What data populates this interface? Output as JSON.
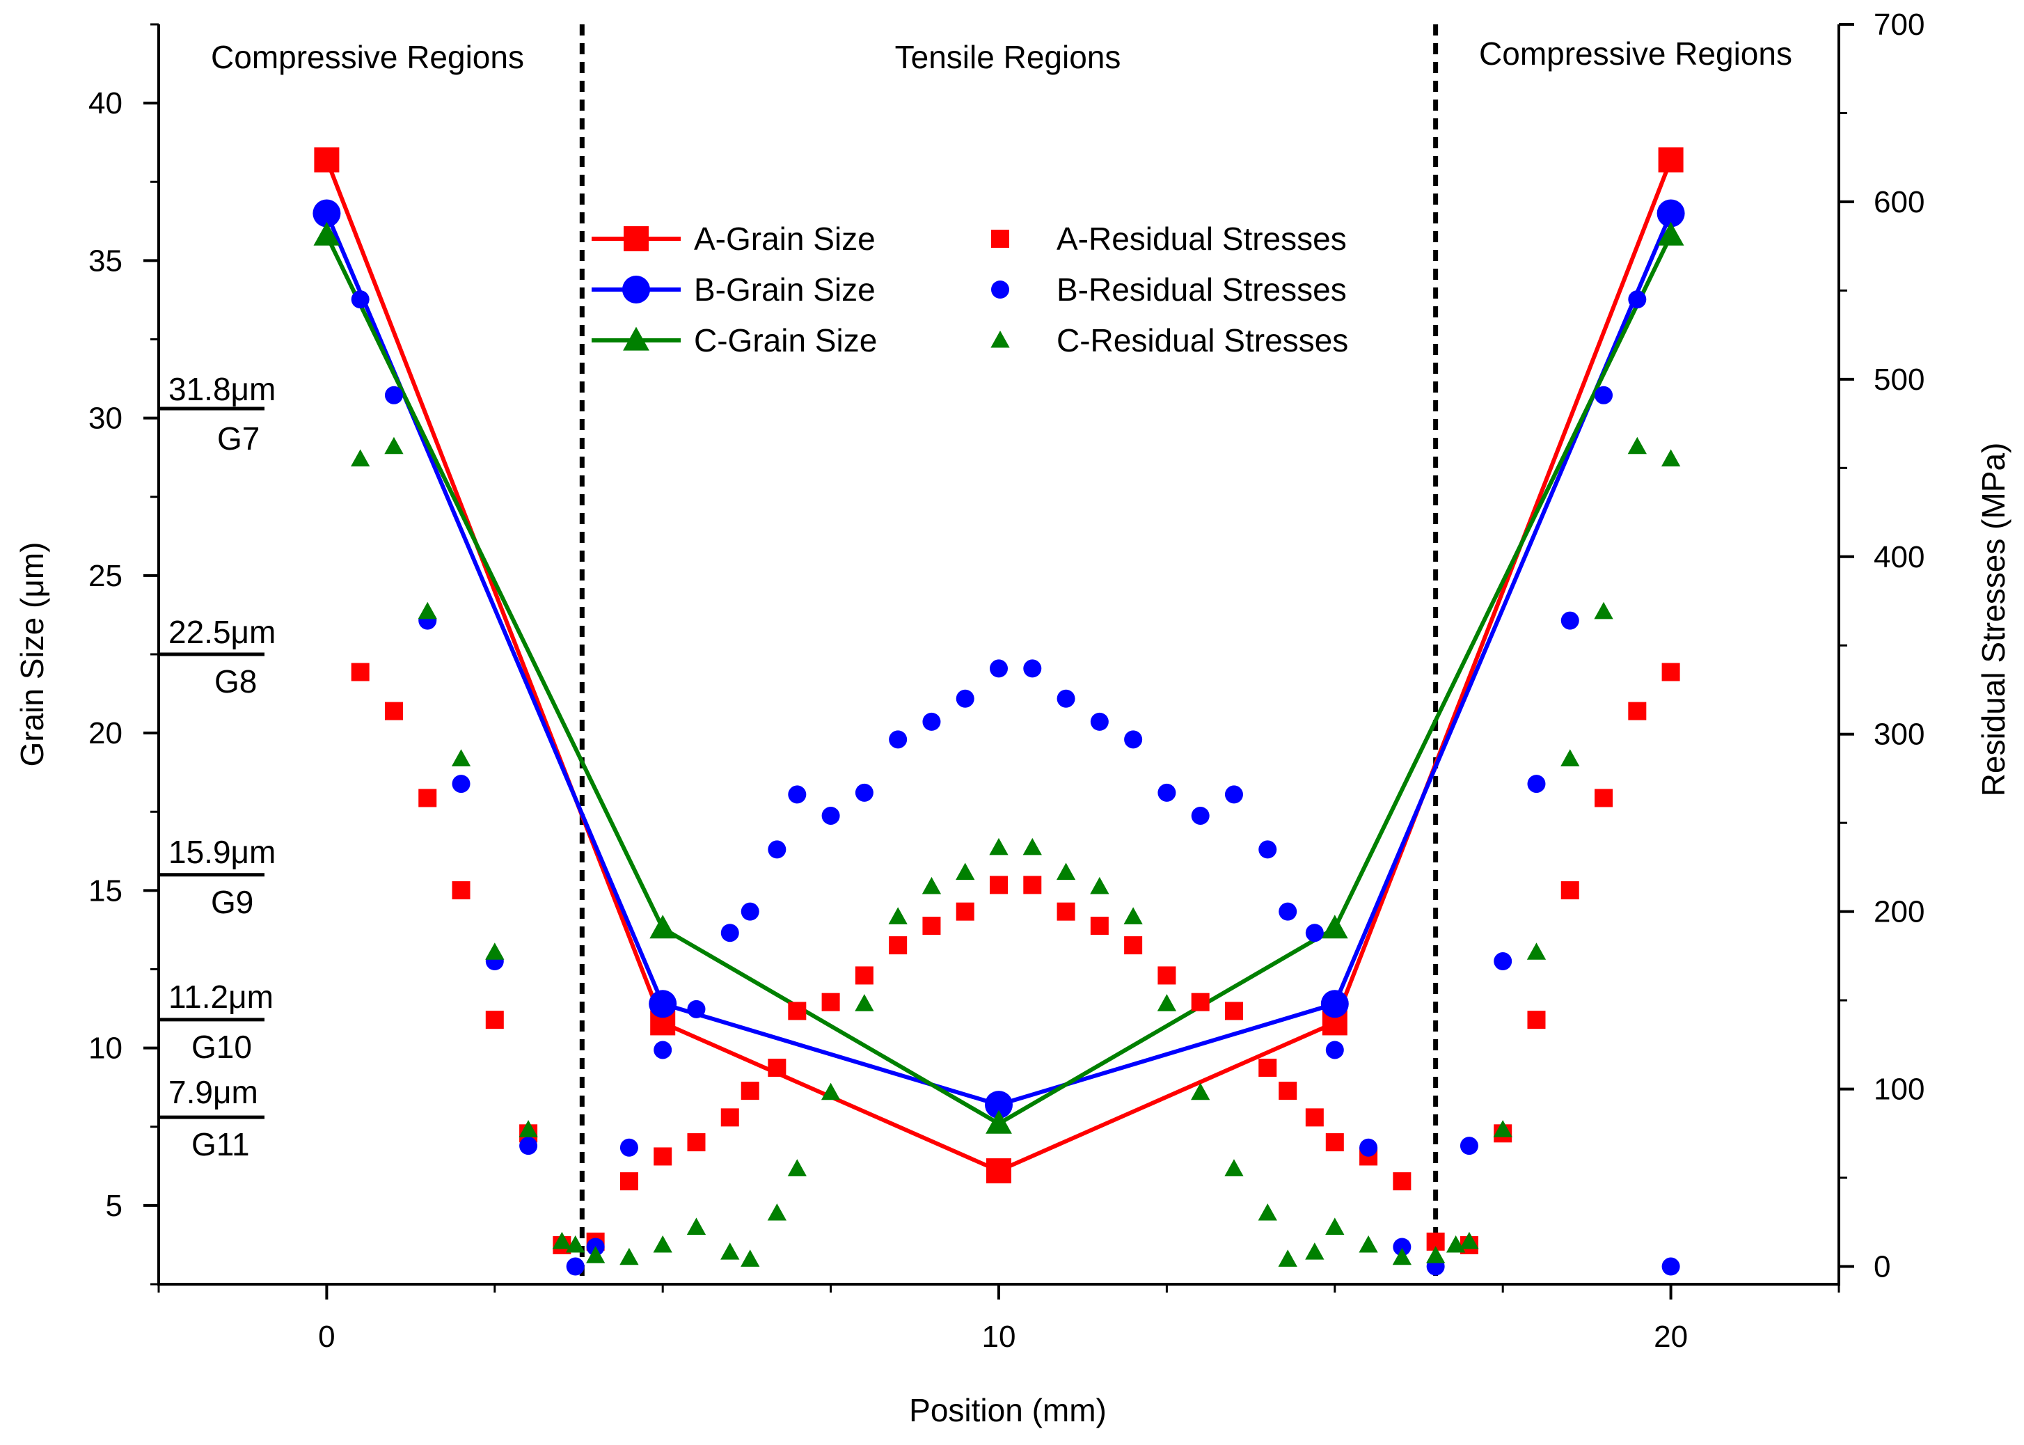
{
  "chart_data": {
    "type": "scatter",
    "xlabel": "Position (mm)",
    "ylabel": "Grain Size (μm)",
    "y2label": "Residual Stresses (MPa)",
    "xlim": [
      -2.5,
      22.5
    ],
    "ylim": [
      2.5,
      42.5
    ],
    "y2lim": [
      -10,
      700
    ],
    "xticks": [
      0,
      10,
      20
    ],
    "yticks": [
      5,
      10,
      15,
      20,
      25,
      30,
      35,
      40
    ],
    "y2ticks": [
      0,
      100,
      200,
      300,
      400,
      500,
      600,
      700
    ],
    "regions": [
      {
        "label": "Compressive Regions"
      },
      {
        "label": "Tensile Regions"
      },
      {
        "label": "Compressive Regions"
      }
    ],
    "region_boundaries_x": [
      3.8,
      16.5
    ],
    "grain_references": [
      {
        "size": "31.8μm",
        "grade": "G7",
        "value": 30.3
      },
      {
        "size": "22.5μm",
        "grade": "G8",
        "value": 22.5
      },
      {
        "size": "15.9μm",
        "grade": "G9",
        "value": 15.5
      },
      {
        "size": "11.2μm",
        "grade": "G10",
        "value": 10.9
      },
      {
        "size": "7.9μm",
        "grade": "G11",
        "value": 7.8
      }
    ],
    "legend": {
      "grain_a": "A-Grain Size",
      "grain_b": "B-Grain Size",
      "grain_c": "C-Grain Size",
      "stress_a": "A-Residual Stresses",
      "stress_b": "B-Residual Stresses",
      "stress_c": "C-Residual Stresses"
    },
    "colors": {
      "A": "#ff0000",
      "B": "#0000ff",
      "C": "#008000"
    },
    "grain_series": [
      {
        "name": "A-Grain Size",
        "key": "A",
        "marker": "square",
        "x": [
          0,
          5,
          10,
          15,
          20
        ],
        "y": [
          38.2,
          10.8,
          6.1,
          10.8,
          38.2
        ]
      },
      {
        "name": "B-Grain Size",
        "key": "B",
        "marker": "circle",
        "x": [
          0,
          5,
          10,
          15,
          20
        ],
        "y": [
          36.5,
          11.4,
          8.2,
          11.4,
          36.5
        ]
      },
      {
        "name": "C-Grain Size",
        "key": "C",
        "marker": "triangle",
        "x": [
          0,
          5,
          10,
          15,
          20
        ],
        "y": [
          35.8,
          13.8,
          7.6,
          13.8,
          35.8
        ]
      }
    ],
    "stress_series": [
      {
        "name": "A-Residual Stresses",
        "key": "A",
        "marker": "square",
        "x": [
          0.5,
          1.0,
          1.5,
          2.0,
          2.5,
          3.0,
          3.5,
          4.0,
          4.5,
          5.0,
          5.5,
          6.0,
          6.3,
          6.7,
          7.0,
          7.5,
          8.0,
          8.5,
          9.0,
          9.5,
          10.0,
          10.5,
          11.0,
          11.5,
          12.0,
          12.5,
          13.0,
          13.5,
          14.0,
          14.3,
          14.7,
          15.0,
          15.5,
          16.0,
          16.5,
          17.0,
          17.5,
          18.0,
          18.5,
          19.0,
          19.5,
          20.0
        ],
        "y": [
          335,
          313,
          264,
          212,
          139,
          75,
          12,
          14,
          48,
          62,
          70,
          84,
          99,
          112,
          144,
          149,
          164,
          181,
          192,
          200,
          215,
          215,
          200,
          192,
          181,
          164,
          149,
          144,
          112,
          99,
          84,
          70,
          62,
          48,
          14,
          12,
          75,
          139,
          212,
          264,
          313,
          335
        ]
      },
      {
        "name": "B-Residual Stresses",
        "key": "B",
        "marker": "circle",
        "x": [
          0.5,
          1.0,
          1.5,
          2.0,
          2.5,
          3.0,
          3.7,
          4.0,
          4.5,
          5.0,
          5.5,
          6.0,
          6.3,
          6.7,
          7.0,
          7.5,
          8.0,
          8.5,
          9.0,
          9.5,
          10.0,
          10.5,
          11.0,
          11.5,
          12.0,
          12.5,
          13.0,
          13.5,
          14.0,
          14.3,
          14.7,
          15.0,
          15.5,
          16.0,
          16.5,
          17.0,
          17.5,
          18.0,
          18.5,
          19.0,
          19.5,
          20.0
        ],
        "y": [
          545,
          491,
          364,
          272,
          172,
          68,
          0,
          11,
          67,
          122,
          145,
          188,
          200,
          235,
          266,
          254,
          267,
          297,
          307,
          320,
          337,
          337,
          320,
          307,
          297,
          267,
          254,
          266,
          235,
          200,
          188,
          122,
          67,
          11,
          0,
          68,
          172,
          272,
          364,
          491,
          545,
          0
        ]
      },
      {
        "name": "C-Residual Stresses",
        "key": "C",
        "marker": "triangle",
        "x": [
          0.5,
          1.0,
          1.5,
          2.0,
          2.5,
          3.0,
          3.5,
          3.7,
          4.0,
          4.5,
          5.0,
          5.5,
          6.0,
          6.3,
          6.7,
          7.0,
          7.5,
          8.0,
          8.5,
          9.0,
          9.5,
          10.0,
          10.5,
          11.0,
          11.5,
          12.0,
          12.5,
          13.0,
          13.5,
          14.0,
          14.3,
          14.7,
          15.0,
          15.5,
          16.0,
          16.5,
          16.8,
          17.0,
          17.5,
          18.0,
          18.5,
          19.0,
          19.5,
          20.0
        ],
        "y": [
          455,
          462,
          369,
          286,
          177,
          77,
          14,
          12,
          6,
          5,
          12,
          22,
          8,
          4,
          30,
          55,
          98,
          148,
          197,
          214,
          222,
          236,
          236,
          222,
          214,
          197,
          148,
          98,
          55,
          30,
          4,
          8,
          22,
          12,
          5,
          6,
          12,
          14,
          77,
          177,
          286,
          369,
          462,
          455
        ]
      }
    ]
  }
}
